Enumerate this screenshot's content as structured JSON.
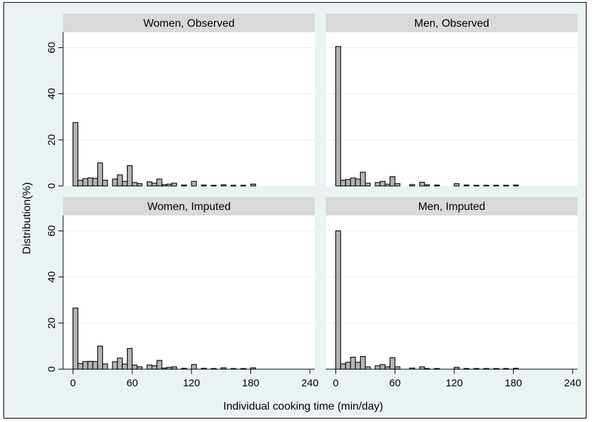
{
  "chart_data": {
    "type": "bar",
    "ylabel": "Distribution(%)",
    "xlabel": "Individual cooking time (min/day)",
    "xlim": [
      -10,
      245
    ],
    "ylim": [
      0,
      64
    ],
    "xticks": [
      0,
      60,
      120,
      180,
      240
    ],
    "yticks": [
      0,
      20,
      40,
      60
    ],
    "bin_width": 5,
    "grid": true,
    "colors": {
      "bar_fill": "#b3b3b3",
      "bar_stroke": "#000000",
      "panel_bg": "#ffffff",
      "strip_bg": "#d9d9d9",
      "outer_bg": "#eaf2f3",
      "grid": "#e8eef0"
    },
    "panels": [
      {
        "title": "Women, Observed",
        "bins": [
          {
            "x": 2.5,
            "y": 27.5
          },
          {
            "x": 7.5,
            "y": 2.5
          },
          {
            "x": 12.5,
            "y": 3.2
          },
          {
            "x": 17.5,
            "y": 3.5
          },
          {
            "x": 22.5,
            "y": 3.3
          },
          {
            "x": 27.5,
            "y": 10.0
          },
          {
            "x": 32.5,
            "y": 2.5
          },
          {
            "x": 42.5,
            "y": 3.0
          },
          {
            "x": 47.5,
            "y": 4.8
          },
          {
            "x": 52.5,
            "y": 2.0
          },
          {
            "x": 57.5,
            "y": 8.8
          },
          {
            "x": 62.5,
            "y": 1.5
          },
          {
            "x": 67.5,
            "y": 1.0
          },
          {
            "x": 77.5,
            "y": 1.8
          },
          {
            "x": 82.5,
            "y": 1.2
          },
          {
            "x": 87.5,
            "y": 3.0
          },
          {
            "x": 92.5,
            "y": 0.6
          },
          {
            "x": 97.5,
            "y": 0.8
          },
          {
            "x": 102.5,
            "y": 1.2
          },
          {
            "x": 112.5,
            "y": 0.4
          },
          {
            "x": 122.5,
            "y": 2.0
          },
          {
            "x": 132.5,
            "y": 0.4
          },
          {
            "x": 142.5,
            "y": 0.3
          },
          {
            "x": 152.5,
            "y": 0.5
          },
          {
            "x": 162.5,
            "y": 0.3
          },
          {
            "x": 172.5,
            "y": 0.3
          },
          {
            "x": 182.5,
            "y": 0.8
          }
        ]
      },
      {
        "title": "Men, Observed",
        "bins": [
          {
            "x": 2.5,
            "y": 60.5
          },
          {
            "x": 7.5,
            "y": 2.5
          },
          {
            "x": 12.5,
            "y": 2.8
          },
          {
            "x": 17.5,
            "y": 3.5
          },
          {
            "x": 22.5,
            "y": 3.0
          },
          {
            "x": 27.5,
            "y": 6.0
          },
          {
            "x": 32.5,
            "y": 1.2
          },
          {
            "x": 42.5,
            "y": 1.5
          },
          {
            "x": 47.5,
            "y": 2.0
          },
          {
            "x": 52.5,
            "y": 0.8
          },
          {
            "x": 57.5,
            "y": 4.0
          },
          {
            "x": 62.5,
            "y": 1.0
          },
          {
            "x": 77.5,
            "y": 0.6
          },
          {
            "x": 87.5,
            "y": 1.6
          },
          {
            "x": 92.5,
            "y": 0.5
          },
          {
            "x": 102.5,
            "y": 0.4
          },
          {
            "x": 122.5,
            "y": 1.0
          },
          {
            "x": 132.5,
            "y": 0.4
          },
          {
            "x": 142.5,
            "y": 0.3
          },
          {
            "x": 152.5,
            "y": 0.3
          },
          {
            "x": 162.5,
            "y": 0.3
          },
          {
            "x": 172.5,
            "y": 0.3
          },
          {
            "x": 182.5,
            "y": 0.4
          }
        ]
      },
      {
        "title": "Women, Imputed",
        "bins": [
          {
            "x": 2.5,
            "y": 26.5
          },
          {
            "x": 7.5,
            "y": 2.5
          },
          {
            "x": 12.5,
            "y": 3.3
          },
          {
            "x": 17.5,
            "y": 3.4
          },
          {
            "x": 22.5,
            "y": 3.3
          },
          {
            "x": 27.5,
            "y": 10.0
          },
          {
            "x": 32.5,
            "y": 2.3
          },
          {
            "x": 42.5,
            "y": 3.2
          },
          {
            "x": 47.5,
            "y": 4.8
          },
          {
            "x": 52.5,
            "y": 2.2
          },
          {
            "x": 57.5,
            "y": 9.0
          },
          {
            "x": 62.5,
            "y": 1.8
          },
          {
            "x": 67.5,
            "y": 1.0
          },
          {
            "x": 77.5,
            "y": 1.8
          },
          {
            "x": 82.5,
            "y": 1.5
          },
          {
            "x": 87.5,
            "y": 3.8
          },
          {
            "x": 92.5,
            "y": 0.5
          },
          {
            "x": 97.5,
            "y": 0.8
          },
          {
            "x": 102.5,
            "y": 1.0
          },
          {
            "x": 112.5,
            "y": 0.4
          },
          {
            "x": 122.5,
            "y": 2.0
          },
          {
            "x": 132.5,
            "y": 0.4
          },
          {
            "x": 142.5,
            "y": 0.3
          },
          {
            "x": 152.5,
            "y": 0.6
          },
          {
            "x": 162.5,
            "y": 0.3
          },
          {
            "x": 172.5,
            "y": 0.3
          },
          {
            "x": 182.5,
            "y": 0.6
          }
        ]
      },
      {
        "title": "Men, Imputed",
        "bins": [
          {
            "x": 2.5,
            "y": 60.0
          },
          {
            "x": 7.5,
            "y": 2.3
          },
          {
            "x": 12.5,
            "y": 3.0
          },
          {
            "x": 17.5,
            "y": 5.2
          },
          {
            "x": 22.5,
            "y": 3.0
          },
          {
            "x": 27.5,
            "y": 5.5
          },
          {
            "x": 32.5,
            "y": 1.0
          },
          {
            "x": 42.5,
            "y": 1.5
          },
          {
            "x": 47.5,
            "y": 2.0
          },
          {
            "x": 52.5,
            "y": 1.0
          },
          {
            "x": 57.5,
            "y": 5.0
          },
          {
            "x": 62.5,
            "y": 1.0
          },
          {
            "x": 77.5,
            "y": 0.5
          },
          {
            "x": 87.5,
            "y": 1.0
          },
          {
            "x": 92.5,
            "y": 0.3
          },
          {
            "x": 102.5,
            "y": 0.3
          },
          {
            "x": 122.5,
            "y": 0.8
          },
          {
            "x": 132.5,
            "y": 0.3
          },
          {
            "x": 142.5,
            "y": 0.3
          },
          {
            "x": 152.5,
            "y": 0.3
          },
          {
            "x": 162.5,
            "y": 0.3
          },
          {
            "x": 172.5,
            "y": 0.3
          },
          {
            "x": 182.5,
            "y": 0.4
          }
        ]
      }
    ]
  }
}
